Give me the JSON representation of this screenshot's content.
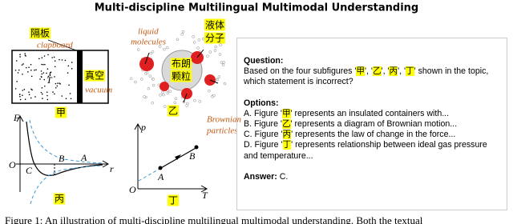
{
  "title": "Multi-discipline Multilingual Multimodal Understanding",
  "figures": {
    "jia": {
      "label": "甲",
      "clapboard_zh": "隔板",
      "clapboard_en": "clapboard",
      "temperature": "T",
      "vacuum_zh": "真空",
      "vacuum_en": "vacuum"
    },
    "yi": {
      "label": "乙",
      "molecules_en": [
        "liquid",
        "molecules"
      ],
      "molecules_zh": [
        "液体",
        "分子"
      ],
      "particle_zh": [
        "布朗",
        "颗粒"
      ],
      "particle_en": [
        "Brownian",
        "particles"
      ]
    },
    "bing": {
      "label": "丙",
      "y_axis": "F",
      "x_axis": "r",
      "points": [
        "O",
        "C",
        "B",
        "A"
      ]
    },
    "ding": {
      "label": "丁",
      "y_axis": "p",
      "x_axis": "T",
      "origin": "O",
      "points": [
        "A",
        "B"
      ]
    }
  },
  "panel": {
    "question_label": "Question:",
    "question": "Based on the four subfigures '甲', '乙', '丙', '丁' shown in the topic, which statement is incorrect?",
    "options_label": "Options:",
    "options": [
      "A. Figure '甲' represents an insulated containers with...",
      "B. Figure '乙' represents a diagram of Brownian motion...",
      "C. Figure '丙' represents the law of change in the force...",
      "D. Figure '丁' represents relationship between ideal gas pressure and temperature..."
    ],
    "answer_label": "Answer:",
    "answer": "C."
  },
  "caption": "Figure 1: An illustration of multi-discipline multilingual multimodal understanding. Both the textual"
}
